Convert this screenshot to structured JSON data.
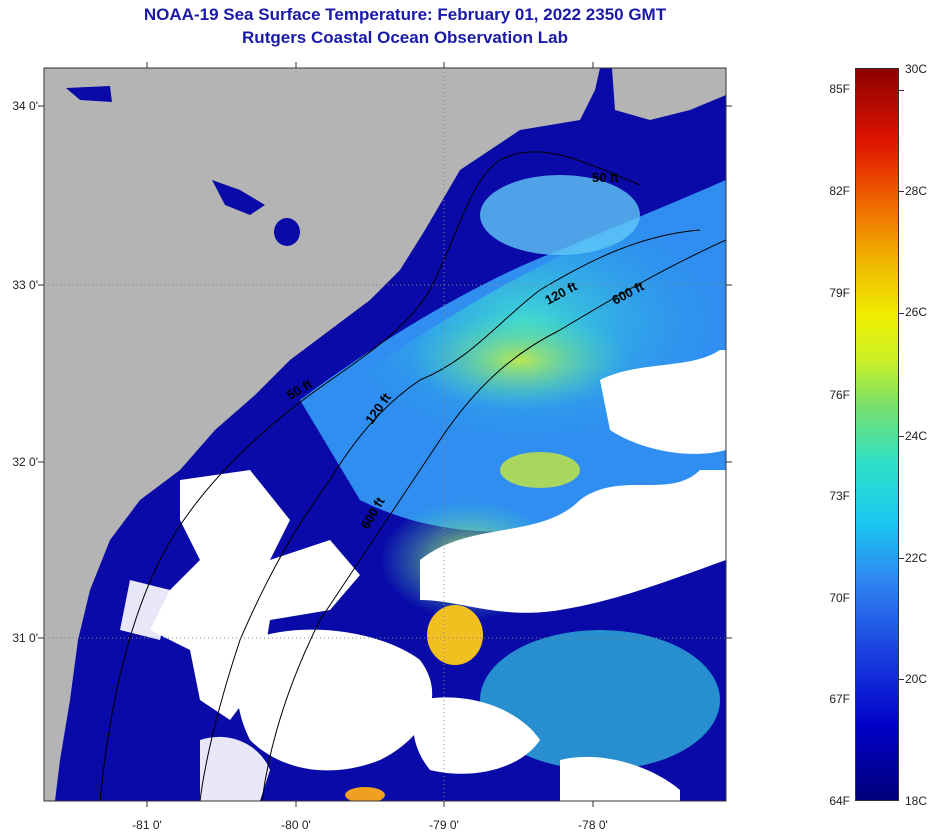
{
  "header": {
    "title": "NOAA-19 Sea Surface Temperature:  February 01, 2022 2350 GMT",
    "subtitle": "Rutgers Coastal Ocean Observation Lab"
  },
  "map": {
    "lat_labels": [
      "34 0'",
      "33 0'",
      "32 0'",
      "31 0'"
    ],
    "lon_labels": [
      "-81 0'",
      "-80 0'",
      "-79 0'",
      "-78 0'"
    ],
    "contour_labels": [
      "50 ft",
      "120 ft",
      "600 ft",
      "50 ft",
      "120 ft",
      "600 ft"
    ],
    "colors": {
      "land": "#b4b4b4",
      "cold_water": "#0a0aa8",
      "cloud": "#ffffff",
      "mid_water": "#33a8f0",
      "shelf_water": "#2ad8d8",
      "warm_patch": "#c8e83a",
      "warmest_patch": "#f0c020"
    }
  },
  "colorbar": {
    "fahrenheit": [
      "85F",
      "82F",
      "79F",
      "76F",
      "73F",
      "70F",
      "67F",
      "64F"
    ],
    "celsius": [
      "30C",
      "28C",
      "26C",
      "24C",
      "22C",
      "20C",
      "18C"
    ]
  }
}
